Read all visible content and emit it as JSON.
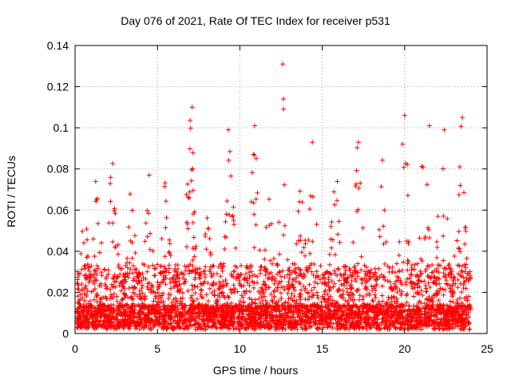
{
  "chart_data": {
    "type": "scatter",
    "title": "Day 076 of 2021, Rate Of TEC Index for receiver p531",
    "xlabel": "GPS time / hours",
    "ylabel": "ROTI / TECUs",
    "xlim": [
      0,
      25
    ],
    "ylim": [
      0,
      0.14
    ],
    "xticks": [
      0,
      5,
      10,
      15,
      20,
      25
    ],
    "xtick_labels": [
      "0",
      "5",
      "10",
      "15",
      "20",
      "25"
    ],
    "yticks": [
      0,
      0.02,
      0.04,
      0.06,
      0.08,
      0.1,
      0.12,
      0.14
    ],
    "ytick_labels": [
      "0",
      "0.02",
      "0.04",
      "0.06",
      "0.08",
      "0.1",
      "0.12",
      "0.14"
    ],
    "grid": true,
    "marker": "+",
    "color": "#ff0000",
    "notable_points": [
      {
        "x": 12.6,
        "y": 0.131
      },
      {
        "x": 12.65,
        "y": 0.114
      },
      {
        "x": 12.65,
        "y": 0.109
      },
      {
        "x": 7.1,
        "y": 0.11
      },
      {
        "x": 20.0,
        "y": 0.106
      },
      {
        "x": 23.5,
        "y": 0.105
      },
      {
        "x": 10.9,
        "y": 0.101
      },
      {
        "x": 9.3,
        "y": 0.099
      },
      {
        "x": 21.5,
        "y": 0.101
      },
      {
        "x": 22.4,
        "y": 0.099
      },
      {
        "x": 14.4,
        "y": 0.093
      },
      {
        "x": 17.2,
        "y": 0.093
      },
      {
        "x": 4.5,
        "y": 0.077
      }
    ]
  }
}
